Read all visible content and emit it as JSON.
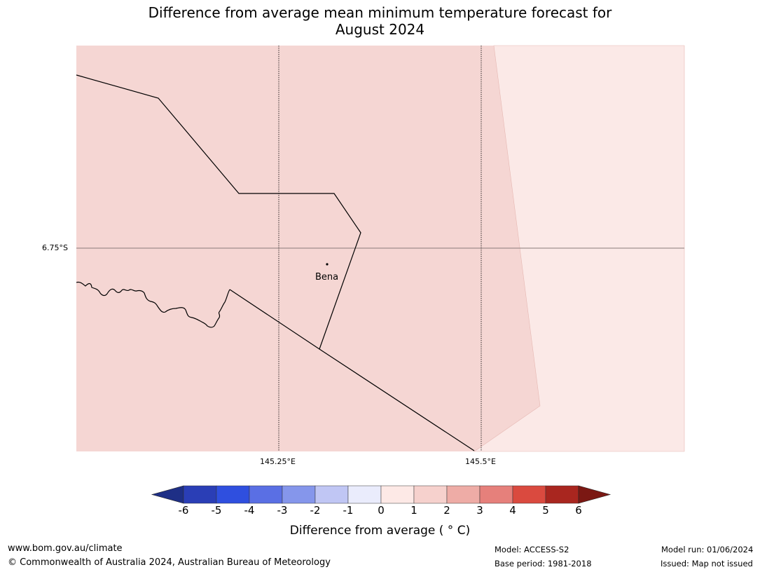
{
  "title_line1": "Difference from average mean minimum temperature forecast for",
  "title_line2": "August 2024",
  "map": {
    "background_color": "#f5d6d3",
    "east_region_color": "#fbe9e7",
    "lat_label": "6.75°S",
    "lon_labels": [
      "145.25°E",
      "145.5°E"
    ],
    "place_name": "Bena"
  },
  "colorbar": {
    "title": "Difference from average ( ° C)",
    "tick_labels": [
      "-6",
      "-5",
      "-4",
      "-3",
      "-2",
      "-1",
      "0",
      "1",
      "2",
      "3",
      "4",
      "5",
      "6"
    ],
    "colors": [
      "#1e2f86",
      "#2a3eb6",
      "#2f4fdf",
      "#5a6fe4",
      "#8596eb",
      "#c0c6f4",
      "#eaecfc",
      "#fde9e6",
      "#f6d1cd",
      "#eeaca6",
      "#e6807b",
      "#da4a3f",
      "#a9261f",
      "#7b1813"
    ]
  },
  "footer": {
    "website": "www.bom.gov.au/climate",
    "copyright": "© Commonwealth of Australia 2024, Australian Bureau of Meteorology",
    "model": "Model: ACCESS-S2",
    "base_period": "Base period: 1981-2018",
    "model_run": "Model run: 01/06/2024",
    "issued": "Issued: Map not issued"
  }
}
